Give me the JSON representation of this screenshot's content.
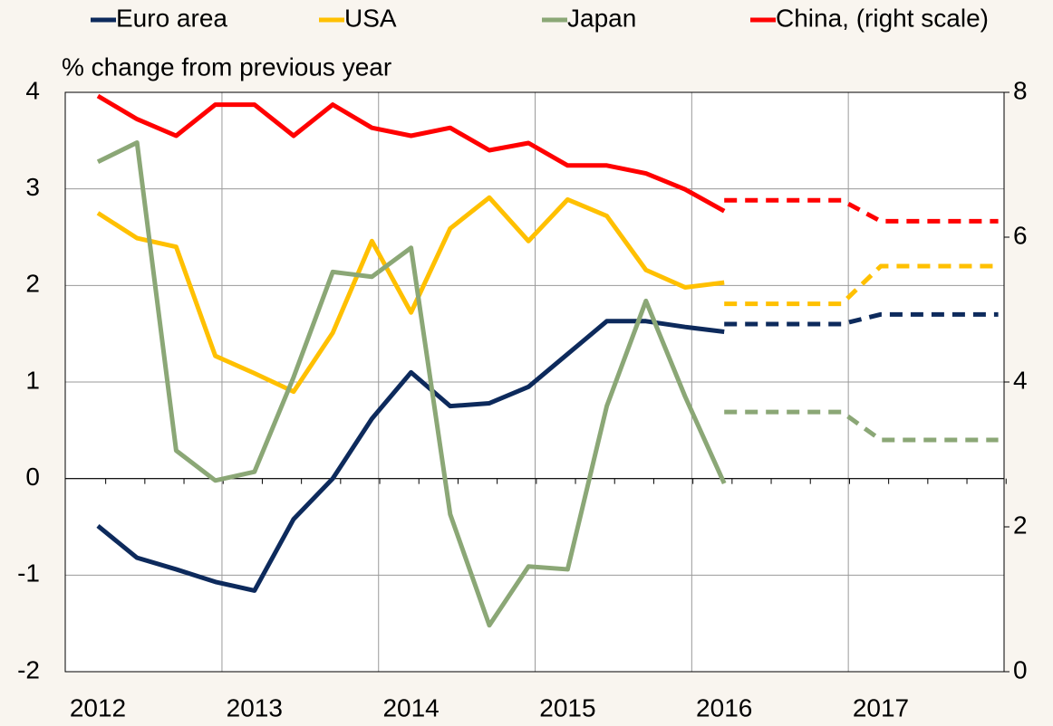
{
  "chart_data": {
    "type": "line",
    "y_label": "% change from previous year",
    "categories": [
      "2012",
      null,
      null,
      null,
      "2013",
      null,
      null,
      null,
      "2014",
      null,
      null,
      null,
      "2015",
      null,
      null,
      null,
      "2016",
      null,
      null,
      null,
      "2017",
      null,
      null,
      null
    ],
    "ylim": [
      -2,
      4
    ],
    "yticks": [
      -2,
      -1,
      0,
      1,
      2,
      3,
      4
    ],
    "y2lim": [
      0,
      8
    ],
    "y2ticks": [
      0,
      2,
      4,
      6,
      8
    ],
    "grid": true,
    "series": [
      {
        "name": "Euro area",
        "color": "#0d2a5c",
        "values": [
          -0.49,
          -0.82,
          -0.94,
          -1.07,
          -1.16,
          -0.42,
          0,
          0.62,
          1.1,
          0.75,
          0.78,
          0.95,
          1.29,
          1.63,
          1.63,
          1.57,
          1.52,
          null,
          null,
          null,
          null,
          null,
          null,
          null
        ],
        "forecast": [
          null,
          null,
          null,
          null,
          null,
          null,
          null,
          null,
          null,
          null,
          null,
          null,
          null,
          null,
          null,
          null,
          1.6,
          1.6,
          1.6,
          1.6,
          1.7,
          1.7,
          1.7,
          1.7
        ]
      },
      {
        "name": "USA",
        "color": "#ffc000",
        "values": [
          2.75,
          2.49,
          2.4,
          1.27,
          1.09,
          0.9,
          1.51,
          2.46,
          1.72,
          2.59,
          2.91,
          2.46,
          2.89,
          2.72,
          2.16,
          1.98,
          2.03,
          null,
          null,
          null,
          null,
          null,
          null,
          null
        ],
        "forecast": [
          null,
          null,
          null,
          null,
          null,
          null,
          null,
          null,
          null,
          null,
          null,
          null,
          null,
          null,
          null,
          null,
          1.81,
          1.81,
          1.81,
          1.81,
          2.2,
          2.2,
          2.2,
          2.2
        ]
      },
      {
        "name": "Japan",
        "color": "#8ba776",
        "values": [
          3.28,
          3.48,
          0.29,
          -0.02,
          0.07,
          1.05,
          2.14,
          2.09,
          2.39,
          -0.37,
          -1.52,
          -0.91,
          -0.94,
          0.75,
          1.84,
          0.85,
          -0.05,
          null,
          null,
          null,
          null,
          null,
          null,
          null
        ],
        "forecast": [
          null,
          null,
          null,
          null,
          null,
          null,
          null,
          null,
          null,
          null,
          null,
          null,
          null,
          null,
          null,
          null,
          0.69,
          0.69,
          0.69,
          0.69,
          0.4,
          0.4,
          0.4,
          0.4
        ]
      },
      {
        "name": "China, (right scale)",
        "color": "#ff0000",
        "axis": "y2",
        "values": [
          7.95,
          7.63,
          7.4,
          7.83,
          7.83,
          7.4,
          7.83,
          7.51,
          7.4,
          7.51,
          7.2,
          7.3,
          6.99,
          6.99,
          6.88,
          6.66,
          6.36,
          null,
          null,
          null,
          null,
          null,
          null,
          null
        ],
        "forecast": [
          null,
          null,
          null,
          null,
          null,
          null,
          null,
          null,
          null,
          null,
          null,
          null,
          null,
          null,
          null,
          null,
          6.51,
          6.51,
          6.51,
          6.51,
          6.22,
          6.22,
          6.22,
          6.22
        ]
      }
    ]
  }
}
